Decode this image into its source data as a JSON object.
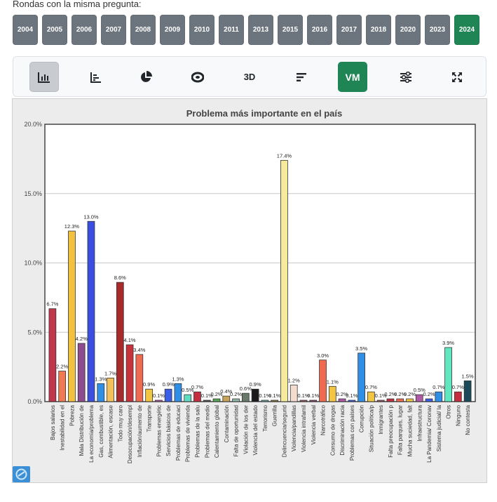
{
  "heading": "Rondas con la misma pregunta:",
  "years": [
    "2004",
    "2005",
    "2006",
    "2007",
    "2008",
    "2009",
    "2010",
    "2011",
    "2013",
    "2015",
    "2016",
    "2017",
    "2018",
    "2020",
    "2023",
    "2024"
  ],
  "active_year": "2024",
  "toolbar": {
    "tools": [
      {
        "name": "bar-chart-icon",
        "label": ""
      },
      {
        "name": "sorted-bars-icon",
        "label": ""
      },
      {
        "name": "pie-chart-icon",
        "label": ""
      },
      {
        "name": "donut-chart-icon",
        "label": ""
      },
      {
        "name": "3d-button",
        "label": "3D"
      },
      {
        "name": "sort-descending-icon",
        "label": ""
      },
      {
        "name": "vm-button",
        "label": "VM"
      },
      {
        "name": "filter-sliders-icon",
        "label": ""
      },
      {
        "name": "fullscreen-icon",
        "label": ""
      }
    ]
  },
  "colors": {
    "year_button": "#6c757d",
    "year_active": "#208555",
    "plot_bg": "#ffffff",
    "chart_bg": "#ececec"
  },
  "chart_data": {
    "type": "bar",
    "title": "Problema más importante en el país",
    "xlabel": "",
    "ylabel": "",
    "ylim": [
      0,
      20
    ],
    "yticks": [
      "0.0%",
      "5.0%",
      "10.0%",
      "15.0%",
      "20.0%"
    ],
    "ytick_values": [
      0,
      5,
      10,
      15,
      20
    ],
    "grid": true,
    "categories": [
      "Bajos salarios",
      "Inestabilidad en el",
      "Pobreza",
      "Mala Distribución de",
      "La economía/problema",
      "Gas, combustible, es",
      "Alimentación, escase",
      "Todo muy caro",
      "Desocupación/desempl",
      "Inflación/aumento de",
      "Transporte",
      "Problemas energétic",
      "Servicios básicos de",
      "Problemas de educaci",
      "Problemas de vivienda",
      "Problemas de la salu",
      "Problemas del medio",
      "Calentamiento global",
      "Contaminación",
      "Falta de oportunidad",
      "Violación de los der",
      "Violencia del estado",
      "Terrorismo",
      "Guerrilla",
      "Delincuencia/segurid",
      "Violencia/pandillas",
      "Violencia intrafamil",
      "Violencia verbal",
      "Narcotráfico",
      "Consumo de drogas",
      "Discriminación racia",
      "Problemas con países",
      "Corrupción",
      "Situación política/p",
      "Inmigrantes",
      "Falta preocupación p",
      "Falta parques, lugar",
      "Mucha suciedad, falt",
      "Infraestructura",
      "La Pandemia/ Coronav",
      "Sistema judicial/ la",
      "Otros",
      "Ninguno",
      "No contesta"
    ],
    "values": [
      6.7,
      2.2,
      12.3,
      4.2,
      13.0,
      1.3,
      1.7,
      8.6,
      4.1,
      3.4,
      0.9,
      0.1,
      0.9,
      1.3,
      0.5,
      0.7,
      0.1,
      0.2,
      0.4,
      0.2,
      0.6,
      0.9,
      0.1,
      0.1,
      17.4,
      1.2,
      0.1,
      0.1,
      3.0,
      1.1,
      0.2,
      0.1,
      3.5,
      0.7,
      0.1,
      0.2,
      0.2,
      0.2,
      0.5,
      0.2,
      0.7,
      3.9,
      0.7,
      1.5
    ],
    "labels": [
      "6.7%",
      "2.2%",
      "12.3%",
      "4.2%",
      "13.0%",
      "1.3%",
      "1.7%",
      "8.6%",
      "4.1%",
      "3.4%",
      "0.9%",
      "0.1%",
      "0.9%",
      "1.3%",
      "0.5%",
      "0.7%",
      "0.1%",
      "0.2%",
      "0.4%",
      "0.2%",
      "0.6%",
      "0.9%",
      "0.1%",
      "0.1%",
      "17.4%",
      "1.2%",
      "0.1%",
      "0.1%",
      "3.0%",
      "1.1%",
      "0.2%",
      "0.1%",
      "3.5%",
      "0.7%",
      "0.1%",
      "0.2%",
      "0.2%",
      "0.2%",
      "0.5%",
      "0.2%",
      "0.7%",
      "3.9%",
      "0.7%",
      "1.5%"
    ],
    "bar_colors": [
      "#c0364a",
      "#f07b52",
      "#f2c140",
      "#8e4b8e",
      "#3a4fe0",
      "#2f8fe6",
      "#f4c05a",
      "#a82a2a",
      "#c8323a",
      "#ef6a4e",
      "#f2c542",
      "#b05aa6",
      "#3a5fe6",
      "#2f8fe6",
      "#5fdcc0",
      "#c42e3e",
      "#555555",
      "#5aa855",
      "#c8a45a",
      "#8fb8a8",
      "#6a7a6a",
      "#1a1a1a",
      "#6aa8a8",
      "#8a7a4a",
      "#f5eb9a",
      "#f5dcd0",
      "#a05a5a",
      "#8a4a6a",
      "#ef6a4e",
      "#f2c542",
      "#b05aa6",
      "#3a5fe6",
      "#2f8fe6",
      "#f2c542",
      "#a05a5a",
      "#c42e3e",
      "#ef6a4e",
      "#f2c542",
      "#b05aa6",
      "#3a5fe6",
      "#2f8fe6",
      "#5fe8c0",
      "#c42e3e",
      "#1a4a5a"
    ]
  }
}
